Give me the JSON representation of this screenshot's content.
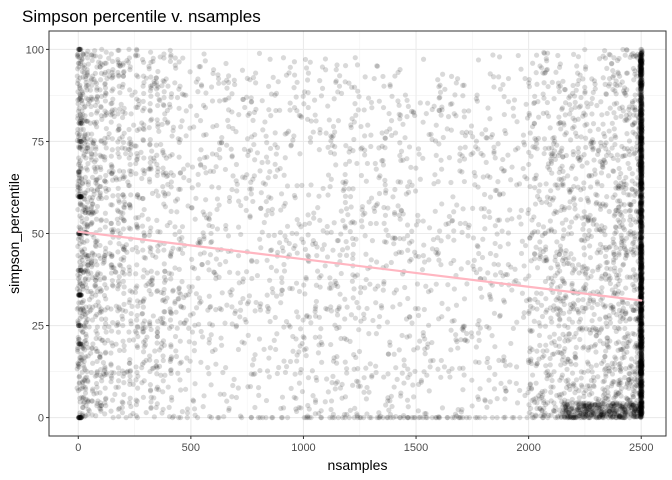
{
  "chart_data": {
    "type": "scatter",
    "title": "Simpson percentile v. nsamples",
    "xlabel": "nsamples",
    "ylabel": "simpson_percentile",
    "xlim": [
      -130,
      2610
    ],
    "ylim": [
      -5,
      105
    ],
    "x_ticks": [
      0,
      500,
      1000,
      1500,
      2000,
      2500
    ],
    "y_ticks": [
      0,
      25,
      50,
      75,
      100
    ],
    "grid": true,
    "theme": "bw",
    "point_color": "#000000",
    "point_alpha": 0.15,
    "point_count_estimate": 6000,
    "point_distribution": {
      "x_range": [
        0,
        2500
      ],
      "y_range": [
        0,
        100
      ],
      "dense_columns_x": [
        0,
        2500
      ],
      "note_dense_low_x": "vertical striping of points at low nsamples (x < 500)"
    },
    "trend_line": {
      "method": "lm",
      "color": "#ffb6c1",
      "x": [
        0,
        2500
      ],
      "y": [
        50.5,
        31.8
      ]
    }
  }
}
